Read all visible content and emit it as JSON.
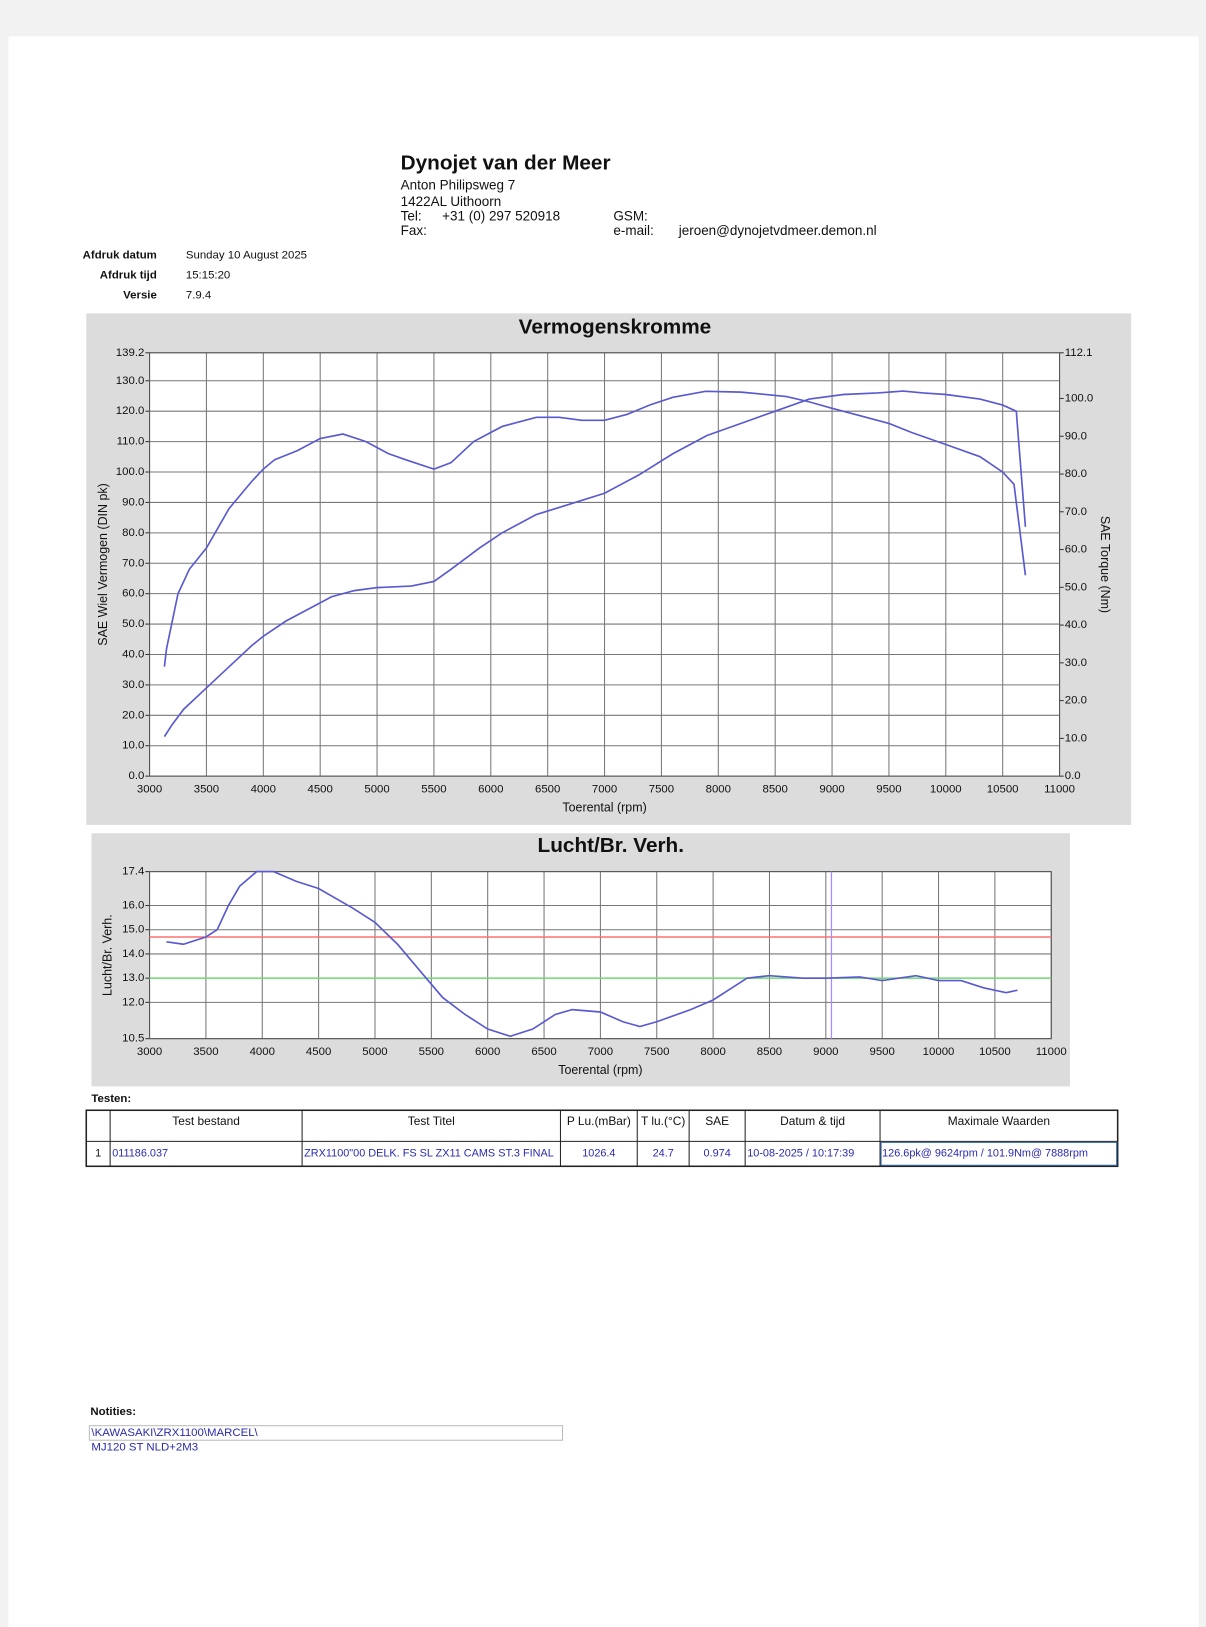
{
  "header": {
    "company": "Dynojet van der Meer",
    "address1": "Anton Philipsweg 7",
    "address2": "1422AL Uithoorn",
    "tel_label": "Tel:",
    "tel": "+31 (0) 297 520918",
    "fax_label": "Fax:",
    "gsm_label": "GSM:",
    "email_label": "e-mail:",
    "email": "jeroen@dynojetvdmeer.demon.nl"
  },
  "info": [
    {
      "label": "Afdruk datum",
      "value": "Sunday 10 August 2025"
    },
    {
      "label": "Afdruk tijd",
      "value": "15:15:20"
    },
    {
      "label": "Versie",
      "value": "7.9.4"
    }
  ],
  "chart_data": [
    {
      "type": "line",
      "title": "Vermogenskromme",
      "x_label": "Toerental (rpm)",
      "y_label": "SAE Wiel Vermogen (DIN pk)",
      "y2_label": "SAE Torque (Nm)",
      "xlim": [
        3000,
        11000
      ],
      "xticks": [
        3000,
        3500,
        4000,
        4500,
        5000,
        5500,
        6000,
        6500,
        7000,
        7500,
        8000,
        8500,
        9000,
        9500,
        10000,
        10500,
        11000
      ],
      "ylim": [
        0,
        139.2
      ],
      "yticks": [
        {
          "value": 0,
          "label": "0.0"
        },
        {
          "value": 10,
          "label": "10.0"
        },
        {
          "value": 20,
          "label": "20.0"
        },
        {
          "value": 30,
          "label": "30.0"
        },
        {
          "value": 40,
          "label": "40.0"
        },
        {
          "value": 50,
          "label": "50.0"
        },
        {
          "value": 60,
          "label": "60.0"
        },
        {
          "value": 70,
          "label": "70.0"
        },
        {
          "value": 80,
          "label": "80.0"
        },
        {
          "value": 90,
          "label": "90.0"
        },
        {
          "value": 100,
          "label": "100.0"
        },
        {
          "value": 110,
          "label": "110.0"
        },
        {
          "value": 120,
          "label": "120.0"
        },
        {
          "value": 130,
          "label": "130.0"
        },
        139.2
      ],
      "y2lim": [
        0,
        112.1
      ],
      "y2ticks": [
        {
          "value": 0,
          "label": "0.0"
        },
        {
          "value": 10,
          "label": "10.0"
        },
        {
          "value": 20,
          "label": "20.0"
        },
        {
          "value": 30,
          "label": "30.0"
        },
        {
          "value": 40,
          "label": "40.0"
        },
        {
          "value": 50,
          "label": "50.0"
        },
        {
          "value": 60,
          "label": "60.0"
        },
        {
          "value": 70,
          "label": "70.0"
        },
        {
          "value": 80,
          "label": "80.0"
        },
        {
          "value": 90,
          "label": "90.0"
        },
        {
          "value": 100,
          "label": "100.0"
        },
        112.1
      ],
      "grid": true,
      "series": [
        {
          "color": "#5a5ad0",
          "x": [
            3130,
            3200,
            3300,
            3500,
            3700,
            3900,
            4000,
            4200,
            4400,
            4600,
            4800,
            5000,
            5300,
            5500,
            5650,
            5900,
            6100,
            6400,
            6700,
            7000,
            7300,
            7600,
            7900,
            8200,
            8500,
            8800,
            9100,
            9400,
            9624,
            9800,
            10000,
            10300,
            10500,
            10620,
            10700
          ],
          "values": [
            13,
            17,
            22,
            29,
            36,
            43,
            46,
            51,
            55,
            59,
            61,
            62,
            62.5,
            64,
            68,
            75,
            80,
            86,
            89.5,
            93,
            99,
            106,
            112,
            116,
            120,
            124,
            125.5,
            126,
            126.6,
            126,
            125.5,
            124,
            122,
            120,
            82
          ]
        },
        {
          "color": "#5a5ad0",
          "axis": "y2",
          "x": [
            3130,
            3150,
            3250,
            3350,
            3500,
            3700,
            3900,
            4000,
            4100,
            4300,
            4500,
            4700,
            4900,
            5100,
            5250,
            5500,
            5650,
            5850,
            6100,
            6400,
            6600,
            6800,
            7000,
            7200,
            7400,
            7600,
            7888,
            8200,
            8400,
            8600,
            8800,
            9000,
            9200,
            9500,
            9700,
            10000,
            10300,
            10500,
            10600,
            10700
          ],
          "values": [
            29,
            33.8,
            48.3,
            54.8,
            60.4,
            70.9,
            78.1,
            81.3,
            83.8,
            86.2,
            89.4,
            90.6,
            88.6,
            85.4,
            83.8,
            81.3,
            83,
            88.6,
            92.6,
            95,
            95,
            94.2,
            94.2,
            95.8,
            98.3,
            100.3,
            101.9,
            101.7,
            101.1,
            100.5,
            99.1,
            97.4,
            95.8,
            93.4,
            91,
            87.8,
            84.6,
            80.5,
            77.3,
            53.2
          ]
        }
      ]
    },
    {
      "type": "line",
      "title": "Lucht/Br. Verh.",
      "x_label": "Toerental (rpm)",
      "y_label": "Lucht/Br. Verh.",
      "xlim": [
        3000,
        11000
      ],
      "xticks": [
        3000,
        3500,
        4000,
        4500,
        5000,
        5500,
        6000,
        6500,
        7000,
        7500,
        8000,
        8500,
        9000,
        9500,
        10000,
        10500,
        11000
      ],
      "ylim": [
        10.5,
        17.4
      ],
      "yticks": [
        10.5,
        {
          "value": 12,
          "label": "12.0"
        },
        {
          "value": 13,
          "label": "13.0"
        },
        {
          "value": 14,
          "label": "14.0"
        },
        {
          "value": 15,
          "label": "15.0"
        },
        {
          "value": 16,
          "label": "16.0"
        },
        17.4
      ],
      "grid": true,
      "reference_lines": [
        {
          "value": 14.7,
          "color": "#ff7070"
        },
        {
          "value": 13.0,
          "color": "#70dd70"
        }
      ],
      "cursor_x": 9050,
      "series": [
        {
          "color": "#5a5ad0",
          "x": [
            3150,
            3300,
            3500,
            3600,
            3700,
            3800,
            3950,
            4100,
            4300,
            4500,
            4800,
            5000,
            5200,
            5400,
            5600,
            5800,
            6000,
            6200,
            6400,
            6600,
            6750,
            7000,
            7200,
            7350,
            7500,
            7800,
            8000,
            8200,
            8300,
            8500,
            8800,
            9000,
            9300,
            9500,
            9800,
            10000,
            10200,
            10400,
            10600,
            10700
          ],
          "values": [
            14.5,
            14.4,
            14.7,
            15.0,
            16.0,
            16.8,
            17.4,
            17.4,
            17.0,
            16.7,
            15.9,
            15.3,
            14.4,
            13.3,
            12.2,
            11.5,
            10.9,
            10.6,
            10.9,
            11.5,
            11.7,
            11.6,
            11.2,
            11.0,
            11.2,
            11.7,
            12.1,
            12.7,
            13.0,
            13.1,
            13.0,
            13.0,
            13.05,
            12.9,
            13.1,
            12.9,
            12.9,
            12.6,
            12.4,
            12.5
          ]
        }
      ]
    }
  ],
  "tests_label": "Testen:",
  "table": {
    "headers": [
      "Test bestand",
      "Test Titel",
      "P Lu.(mBar)",
      "T lu.(°C)",
      "SAE",
      "Datum & tijd",
      "Maximale Waarden"
    ],
    "rows": [
      [
        "1",
        "011186.037",
        "ZRX1100\"00 DELK. FS SL ZX11 CAMS ST.3 FINAL",
        "1026.4",
        "24.7",
        "0.974",
        "10-08-2025 / 10:17:39",
        "126.6pk@ 9624rpm / 101.9Nm@ 7888rpm"
      ]
    ]
  },
  "notes_label": "Notities:",
  "notes": [
    "\\KAWASAKI\\ZRX1100\\MARCEL\\",
    "MJ120 ST NLD+2M3"
  ]
}
